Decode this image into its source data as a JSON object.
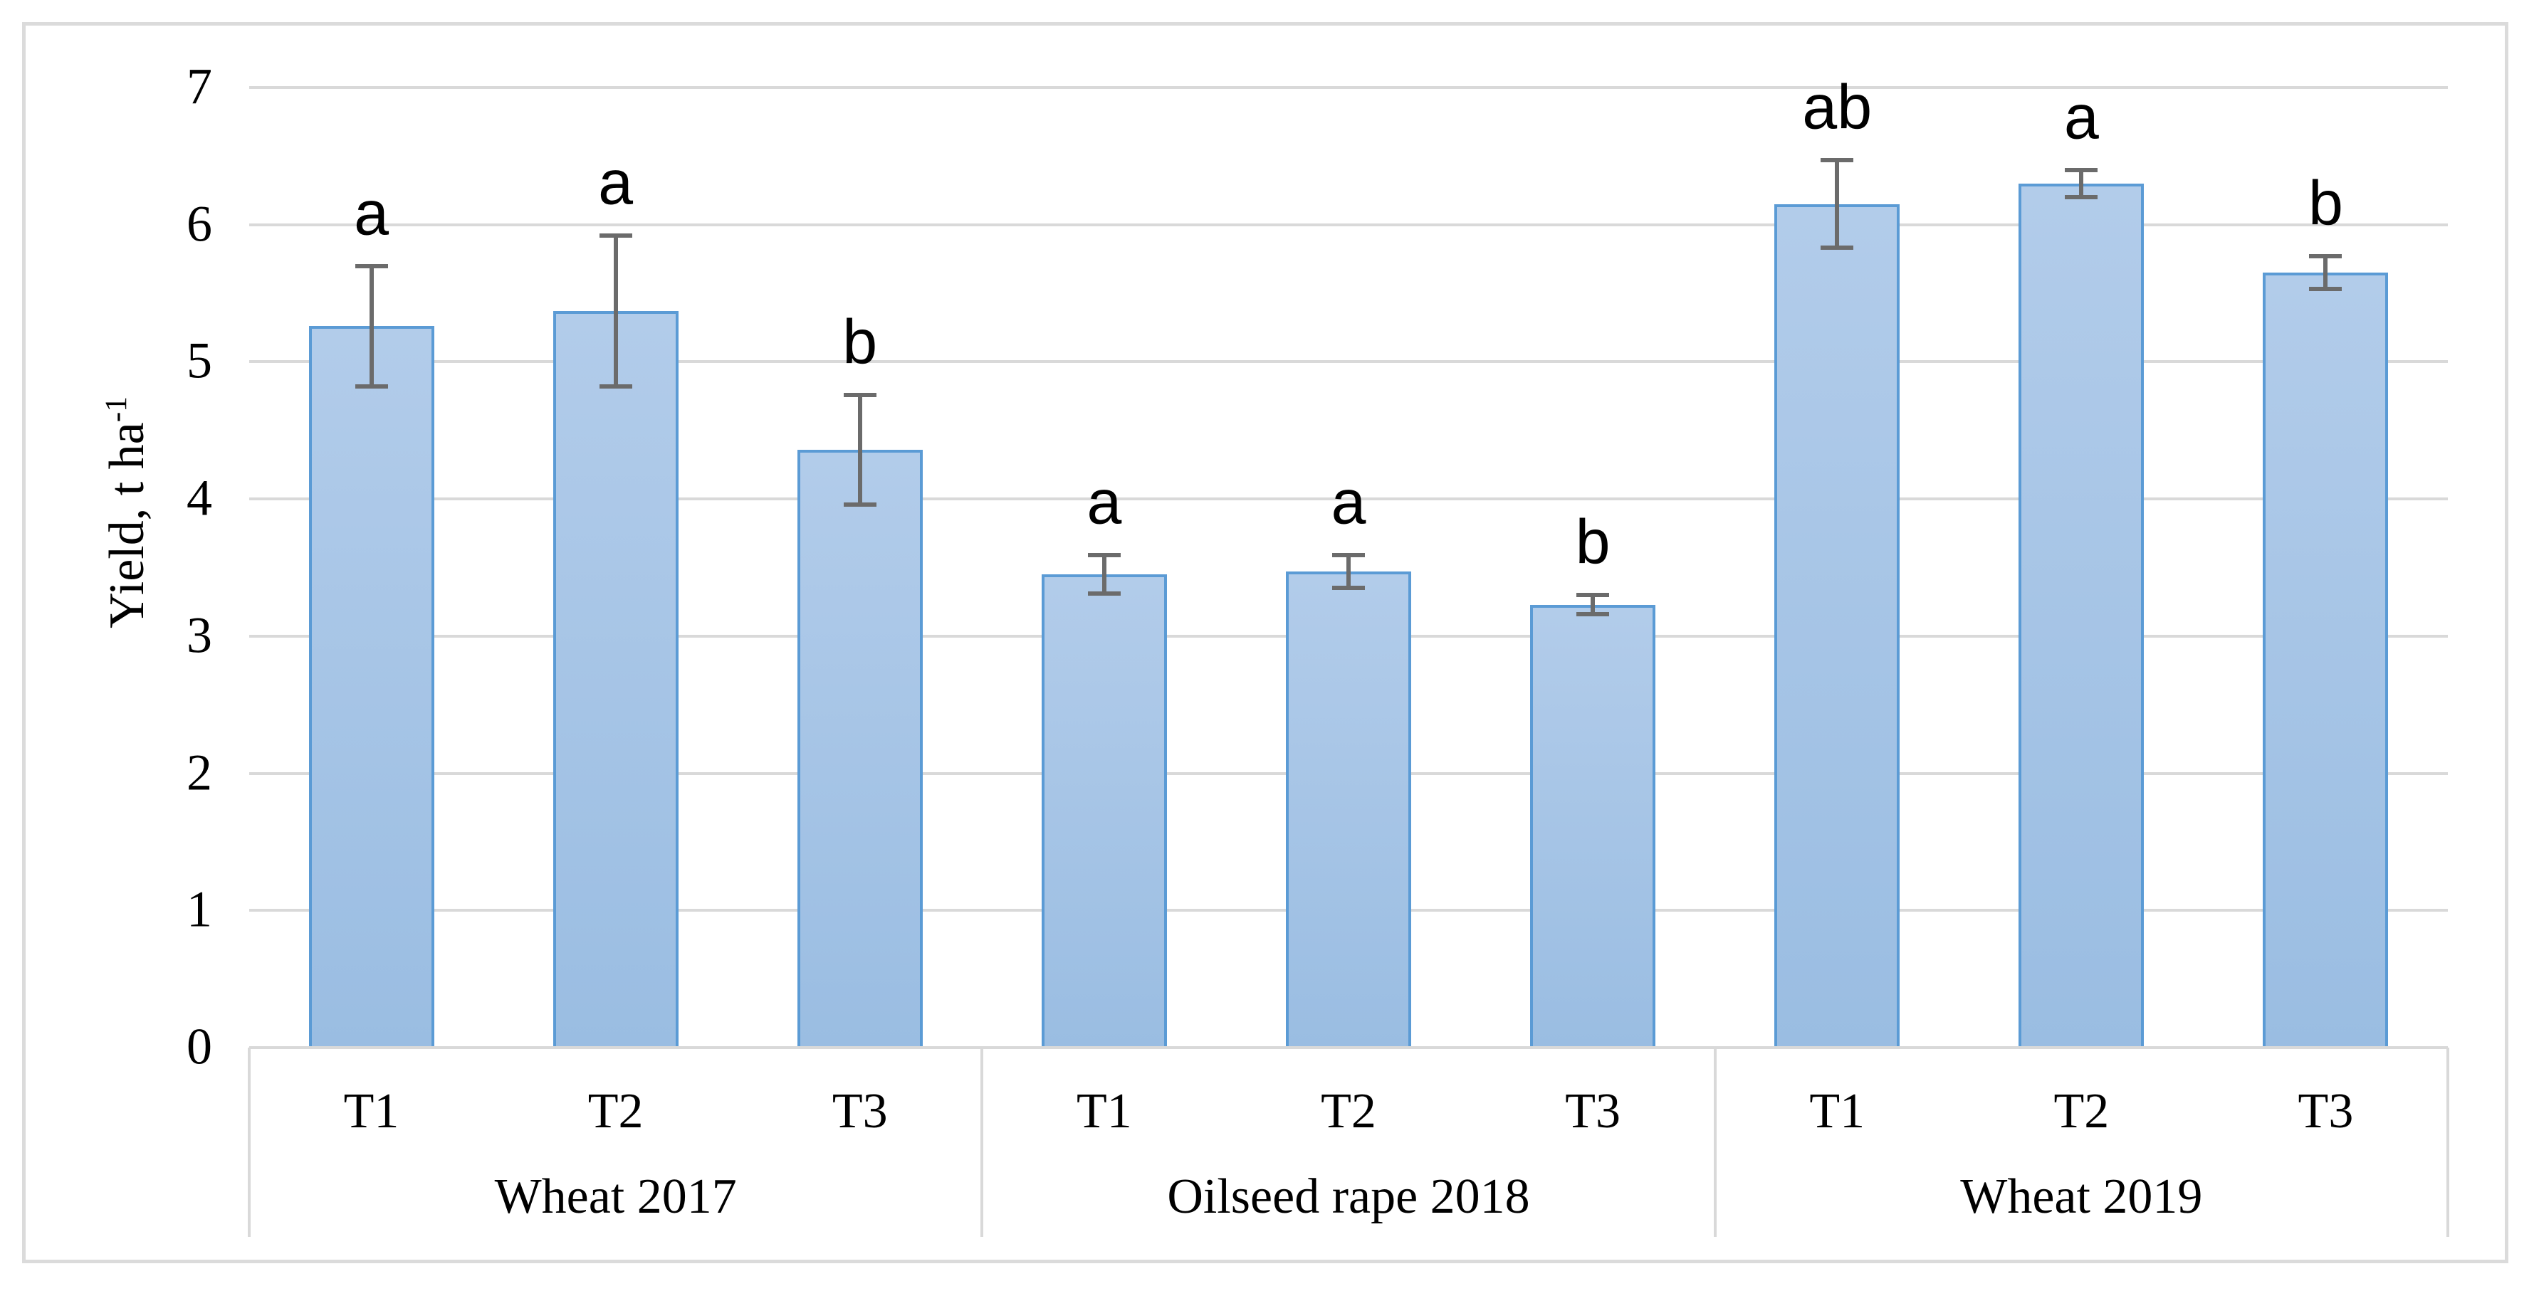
{
  "figure": {
    "background_color": "#FFFFFF",
    "border_color": "#DBDBDB"
  },
  "chart_data": {
    "type": "bar",
    "title": "",
    "xlabel": "",
    "ylabel": "Yield, t ha⁻¹",
    "ylabel_base": "Yield, t ha",
    "ylabel_sup": "-1",
    "ylim": [
      0,
      7
    ],
    "yticks": [
      0,
      1,
      2,
      3,
      4,
      5,
      6,
      7
    ],
    "grid": true,
    "legend": "none",
    "error_bars": true,
    "groups": [
      {
        "label": "Wheat 2017",
        "categories": [
          "T1",
          "T2",
          "T3"
        ],
        "values": [
          5.26,
          5.37,
          4.36
        ],
        "errors": [
          0.44,
          0.55,
          0.4
        ],
        "letters": [
          "a",
          "a",
          "b"
        ]
      },
      {
        "label": "Oilseed rape 2018",
        "categories": [
          "T1",
          "T2",
          "T3"
        ],
        "values": [
          3.45,
          3.47,
          3.23
        ],
        "errors": [
          0.14,
          0.12,
          0.07
        ],
        "letters": [
          "a",
          "a",
          "b"
        ]
      },
      {
        "label": "Wheat 2019",
        "categories": [
          "T1",
          "T2",
          "T3"
        ],
        "values": [
          6.15,
          6.3,
          5.65
        ],
        "errors": [
          0.32,
          0.1,
          0.12
        ],
        "letters": [
          "ab",
          "a",
          "b"
        ]
      }
    ],
    "colors": {
      "bar_fill_top": "#B2CCEA",
      "bar_fill_bottom": "#9ABDE2",
      "bar_border": "#5B9BD5",
      "error_bar": "#6B6B6B",
      "gridline": "#D9D9D9",
      "text": "#000000"
    }
  }
}
